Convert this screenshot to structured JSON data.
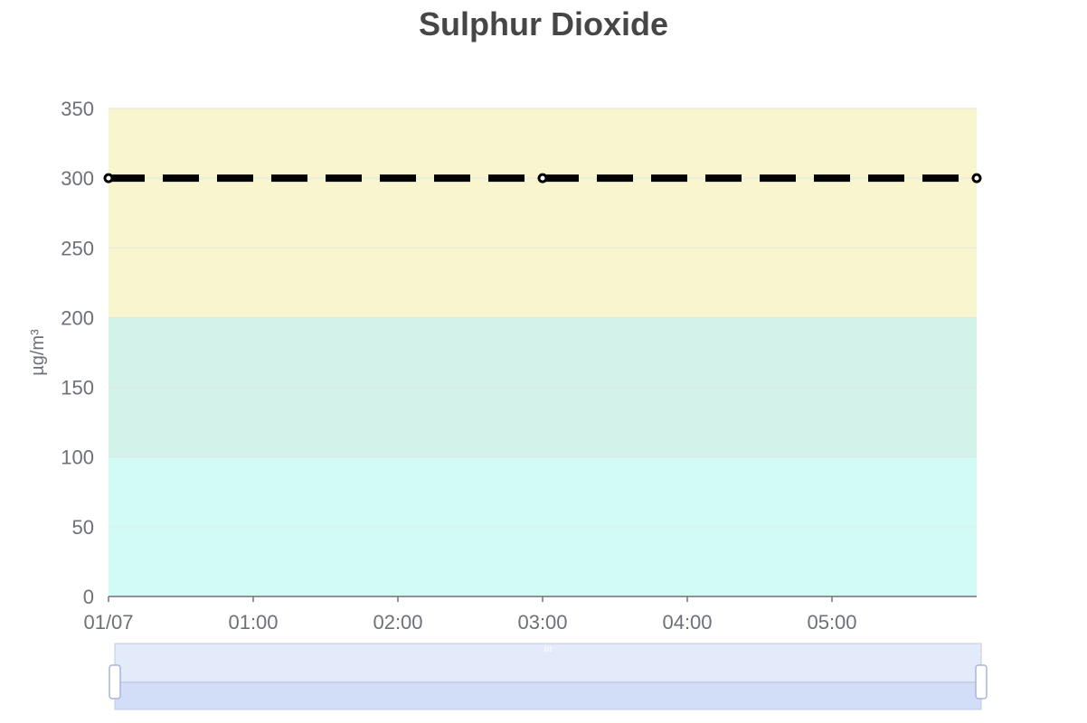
{
  "chart_data": {
    "type": "line",
    "title": "Sulphur Dioxide",
    "xlabel": "",
    "ylabel": "µg/m³",
    "ylim": [
      0,
      350
    ],
    "yticks": [
      0,
      50,
      100,
      150,
      200,
      250,
      300,
      350
    ],
    "xlim": [
      0,
      6
    ],
    "x_tick_labels": [
      {
        "x": 0,
        "label": "01/07"
      },
      {
        "x": 1,
        "label": "01:00"
      },
      {
        "x": 2,
        "label": "02:00"
      },
      {
        "x": 3,
        "label": "03:00"
      },
      {
        "x": 4,
        "label": "04:00"
      },
      {
        "x": 5,
        "label": "05:00"
      }
    ],
    "x_unit": "hours",
    "bands": [
      {
        "from": 0,
        "to": 100,
        "color": "#d2fbf6"
      },
      {
        "from": 100,
        "to": 200,
        "color": "#d3f2ea"
      },
      {
        "from": 200,
        "to": 350,
        "color": "#f9f6cf"
      }
    ],
    "series": [
      {
        "x": [
          0,
          3,
          6
        ],
        "values": [
          300,
          300,
          300
        ],
        "color": "#000000",
        "style": "dashed",
        "markers": "hollow-circle"
      }
    ],
    "grid": true,
    "data_zoom": {
      "start": 0,
      "end": 100
    },
    "colors": {
      "axis": "#6e7079",
      "gridline": "#dfe6e2",
      "title": "#464646",
      "zoom_fill": "#e3ebfb",
      "zoom_window": "#d2ddf8",
      "zoom_border": "#bfcbe5"
    }
  }
}
